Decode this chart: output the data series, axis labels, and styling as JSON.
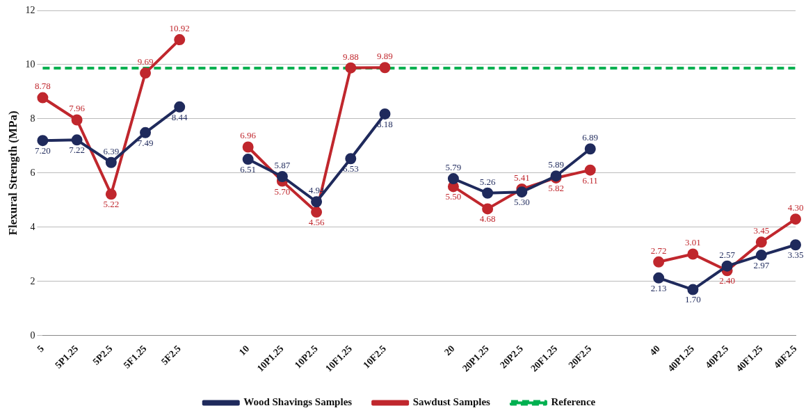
{
  "chart_data": {
    "type": "line",
    "ylabel": "Flexural Strength (MPa)",
    "categories": [
      "5",
      "5P1.25",
      "5P2.5",
      "5F1.25",
      "5F2.5",
      null,
      "10",
      "10P1.25",
      "10P2.5",
      "10F1.25",
      "10F2.5",
      null,
      "20",
      "20P1.25",
      "20P2.5",
      "20F1.25",
      "20F2.5",
      null,
      "40",
      "40P1.25",
      "40P2.5",
      "40F1.25",
      "40F2.5"
    ],
    "series": [
      {
        "name": "Wood Shavings Samples",
        "color": "#1f2a5c",
        "values": [
          7.2,
          7.22,
          6.39,
          7.49,
          8.44,
          null,
          6.51,
          5.87,
          4.94,
          6.53,
          8.18,
          null,
          5.79,
          5.26,
          5.3,
          5.89,
          6.89,
          null,
          2.13,
          1.7,
          2.57,
          2.97,
          3.35
        ],
        "value_labels": [
          "7.20",
          "7.22",
          "6.39",
          "7.49",
          "8.44",
          null,
          "6.51",
          "5.87",
          "4.94",
          "6.53",
          "8.18",
          null,
          "5.79",
          "5.26",
          "5.30",
          "5.89",
          "6.89",
          null,
          "2.13",
          "1.70",
          "2.57",
          "2.97",
          "3.35"
        ]
      },
      {
        "name": "Sawdust Samples",
        "color": "#c0272d",
        "values": [
          8.78,
          7.96,
          5.22,
          9.69,
          10.92,
          null,
          6.96,
          5.7,
          4.56,
          9.88,
          9.89,
          null,
          5.5,
          4.68,
          5.41,
          5.82,
          6.11,
          null,
          2.72,
          3.01,
          2.4,
          3.45,
          4.3
        ],
        "value_labels": [
          "8.78",
          "7.96",
          "5.22",
          "9.69",
          "10.92",
          null,
          "6.96",
          "5.70",
          "4.56",
          "9.88",
          "9.89",
          null,
          "5.50",
          "4.68",
          "5.41",
          "5.82",
          "6.11",
          null,
          "2.72",
          "3.01",
          "2.40",
          "3.45",
          "4.30"
        ]
      },
      {
        "name": "Reference",
        "color": "#00b050",
        "marker": "none",
        "line_style": "dashed",
        "values": [
          9.87,
          9.87,
          9.87,
          9.87,
          9.87,
          9.87,
          9.87,
          9.87,
          9.87,
          9.87,
          9.87,
          9.87,
          9.87,
          9.87,
          9.87,
          9.87,
          9.87,
          9.87,
          9.87,
          9.87,
          9.87,
          9.87,
          9.87
        ]
      }
    ],
    "ylim": [
      0,
      12
    ],
    "yticks": [
      0,
      2,
      4,
      6,
      8,
      10,
      12
    ],
    "grid": "y",
    "legend": "bottom",
    "marker": "circle",
    "line_style": "solid"
  }
}
